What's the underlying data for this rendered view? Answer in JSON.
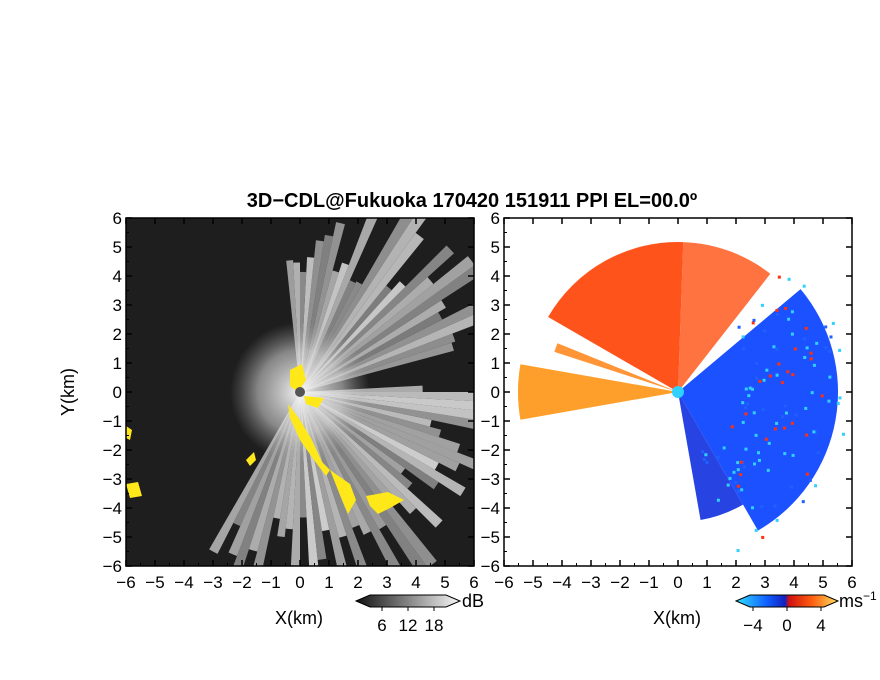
{
  "title": "3D−CDL@Fukuoka 170420 151911 PPI EL=00.0º",
  "colors": {
    "reflectivity_low": "#1e1e1e",
    "reflectivity_high": "#f2f2f2",
    "highlight": "#ffe81a",
    "velocity_negative": "#1040ff",
    "velocity_positive": "#ff4010",
    "velocity_orange": "#ff9a20",
    "velocity_cyan": "#30d0ff"
  },
  "chart_data": [
    {
      "type": "heatmap",
      "panel": "left",
      "title": "",
      "xlabel": "X(km)",
      "ylabel": "Y(km)",
      "xlim": [
        -6,
        6
      ],
      "ylim": [
        -6,
        6
      ],
      "x_ticks": [
        "−6",
        "−5",
        "−4",
        "−3",
        "−2",
        "−1",
        "0",
        "1",
        "2",
        "3",
        "4",
        "5",
        "6"
      ],
      "y_ticks": [
        "6",
        "5",
        "4",
        "3",
        "2",
        "1",
        "0",
        "−1",
        "−2",
        "−3",
        "−4",
        "−5",
        "−6"
      ],
      "colorbar": {
        "unit": "dB",
        "ticks": [
          6,
          12,
          18
        ],
        "range": [
          0,
          24
        ]
      }
    },
    {
      "type": "heatmap",
      "panel": "right",
      "title": "",
      "xlabel": "X(km)",
      "ylabel": "",
      "xlim": [
        -6,
        6
      ],
      "ylim": [
        -6,
        6
      ],
      "x_ticks": [
        "−6",
        "−5",
        "−4",
        "−3",
        "−2",
        "−1",
        "0",
        "1",
        "2",
        "3",
        "4",
        "5",
        "6"
      ],
      "y_ticks": [
        "6",
        "5",
        "4",
        "3",
        "2",
        "1",
        "0",
        "−1",
        "−2",
        "−3",
        "−4",
        "−5",
        "−6"
      ],
      "colorbar": {
        "unit": "ms",
        "unit_exponent": "−1",
        "ticks": [
          -4,
          0,
          4
        ],
        "range": [
          -6,
          6
        ]
      }
    }
  ]
}
